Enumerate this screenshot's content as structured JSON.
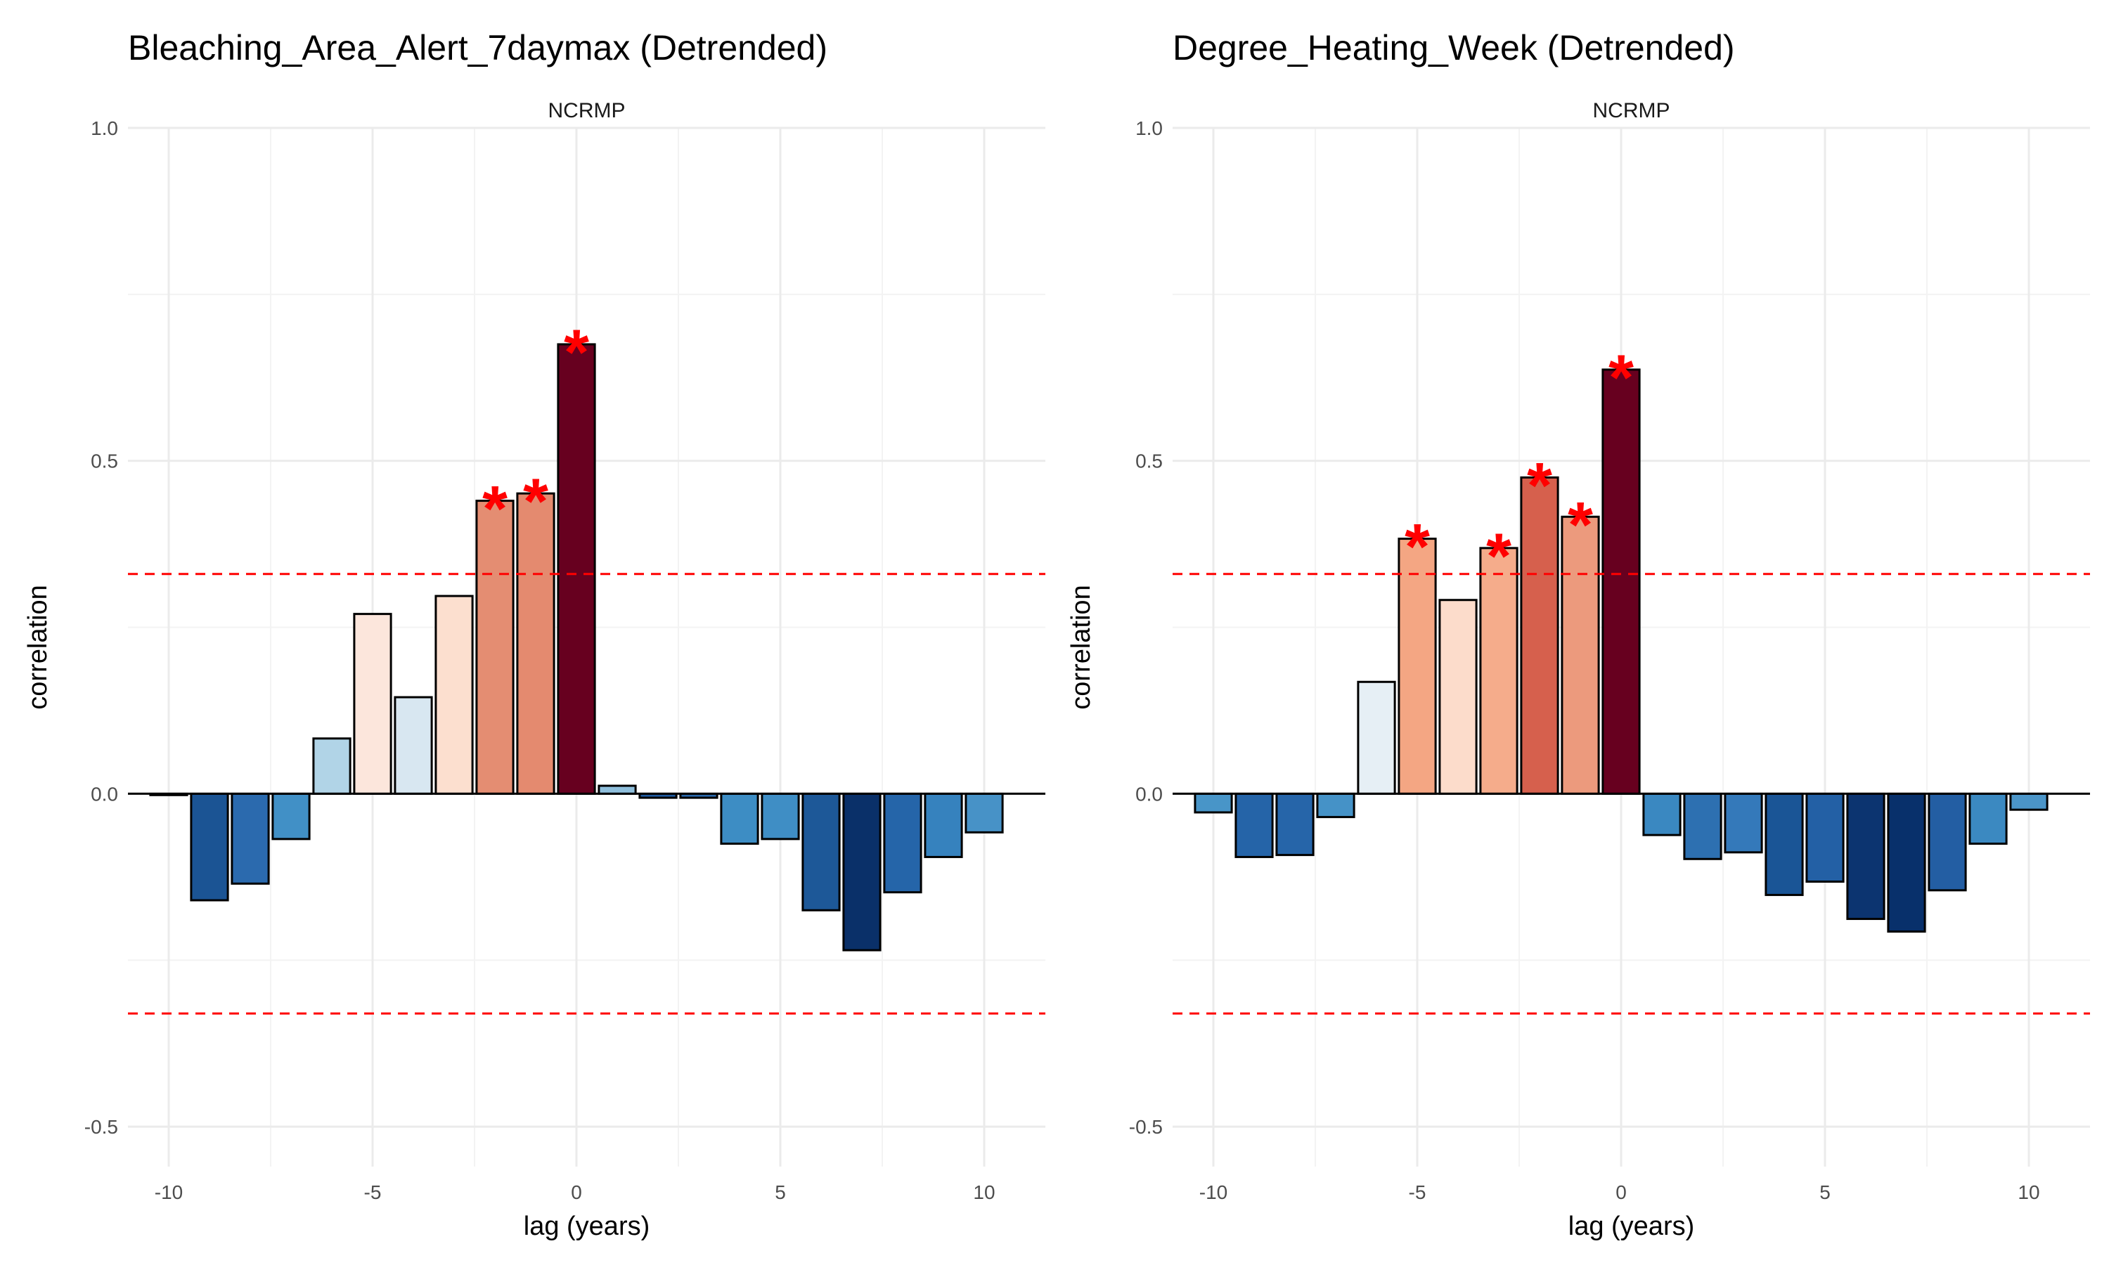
{
  "figure": {
    "strip_label": "NCRMP",
    "xlabel": "lag (years)",
    "ylabel": "correlation"
  },
  "chart_data": [
    {
      "type": "bar",
      "title": "Bleaching_Area_Alert_7daymax (Detrended)",
      "facet": "NCRMP",
      "xlabel": "lag (years)",
      "ylabel": "correlation",
      "xlim": [
        -11.0,
        11.5
      ],
      "ylim": [
        -0.56,
        1.0
      ],
      "xticks": [
        -10,
        -5,
        0,
        5,
        10
      ],
      "yticks": [
        -0.5,
        0.0,
        0.5,
        1.0
      ],
      "ytick_labels": [
        "-0.5",
        "0.0",
        "0.5",
        "1.0"
      ],
      "significance_threshold": 0.33,
      "grid": true,
      "x": [
        -10,
        -9,
        -8,
        -7,
        -6,
        -5,
        -4,
        -3,
        -2,
        -1,
        0,
        1,
        2,
        3,
        4,
        5,
        6,
        7,
        8,
        9,
        10
      ],
      "values": [
        -0.002,
        -0.16,
        -0.135,
        -0.068,
        0.083,
        0.27,
        0.145,
        0.297,
        0.44,
        0.451,
        0.675,
        0.012,
        -0.006,
        -0.006,
        -0.075,
        -0.068,
        -0.175,
        -0.235,
        -0.148,
        -0.095,
        -0.058
      ],
      "significant": [
        false,
        false,
        false,
        false,
        false,
        false,
        false,
        false,
        true,
        true,
        true,
        false,
        false,
        false,
        false,
        false,
        false,
        false,
        false,
        false,
        false
      ],
      "colors": [
        "#3d7fbb",
        "#1b5494",
        "#2b6aae",
        "#4190c6",
        "#b1d4e7",
        "#fce6dc",
        "#d8e7f1",
        "#fcdfcf",
        "#e48d72",
        "#e48a6f",
        "#67001f",
        "#8fbfdc",
        "#1f5aa0",
        "#2a68ab",
        "#3d8dc4",
        "#3f8ec5",
        "#1d5898",
        "#0a3069",
        "#2565a9",
        "#3682be",
        "#4792c7"
      ],
      "significance_marker": "*"
    },
    {
      "type": "bar",
      "title": "Degree_Heating_Week (Detrended)",
      "facet": "NCRMP",
      "xlabel": "lag (years)",
      "ylabel": "correlation",
      "xlim": [
        -11.0,
        11.5
      ],
      "ylim": [
        -0.56,
        1.0
      ],
      "xticks": [
        -10,
        -5,
        0,
        5,
        10
      ],
      "yticks": [
        -0.5,
        0.0,
        0.5,
        1.0
      ],
      "ytick_labels": [
        "-0.5",
        "0.0",
        "0.5",
        "1.0"
      ],
      "significance_threshold": 0.33,
      "grid": true,
      "x": [
        -10,
        -9,
        -8,
        -7,
        -6,
        -5,
        -4,
        -3,
        -2,
        -1,
        0,
        1,
        2,
        3,
        4,
        5,
        6,
        7,
        8,
        9,
        10
      ],
      "values": [
        -0.028,
        -0.095,
        -0.092,
        -0.035,
        0.168,
        0.383,
        0.291,
        0.369,
        0.475,
        0.416,
        0.637,
        -0.062,
        -0.098,
        -0.088,
        -0.152,
        -0.132,
        -0.188,
        -0.207,
        -0.145,
        -0.075,
        -0.024
      ],
      "significant": [
        false,
        false,
        false,
        false,
        false,
        true,
        false,
        true,
        true,
        true,
        true,
        false,
        false,
        false,
        false,
        false,
        false,
        false,
        false,
        false,
        false
      ],
      "colors": [
        "#4895c8",
        "#2564a8",
        "#2665a9",
        "#4592c7",
        "#e6eff5",
        "#f4a683",
        "#fcdccb",
        "#f5ac8b",
        "#d6604d",
        "#ec9a7d",
        "#67001f",
        "#3a88c1",
        "#2d70b1",
        "#3479ba",
        "#1a5596",
        "#2360a5",
        "#0c3470",
        "#08306b",
        "#235ea3",
        "#3b89c1",
        "#4b95c8"
      ],
      "significance_marker": "*"
    }
  ]
}
